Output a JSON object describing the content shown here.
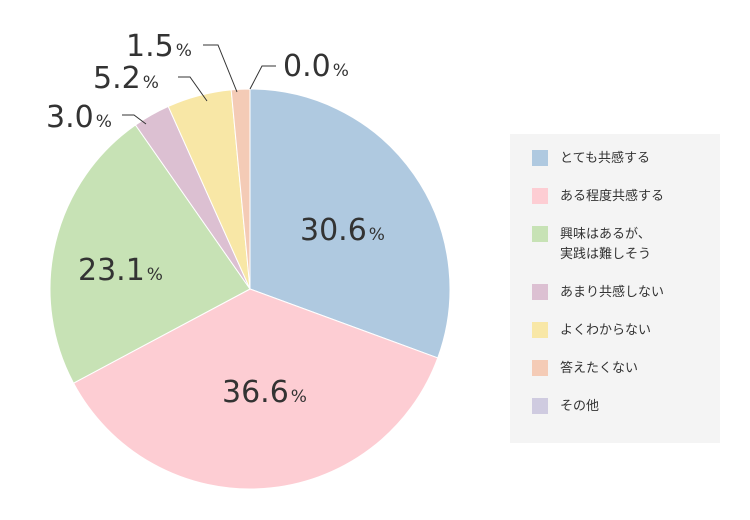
{
  "chart_data": {
    "type": "pie",
    "series": [
      {
        "label": "とても共感する",
        "value": 30.6,
        "display": "30.6",
        "color": "#afc9e0"
      },
      {
        "label": "ある程度共感する",
        "value": 36.6,
        "display": "36.6",
        "color": "#fdcdd3"
      },
      {
        "label": "興味はあるが、\n実践は難しそう",
        "value": 23.1,
        "display": "23.1",
        "color": "#c7e2b5"
      },
      {
        "label": "あまり共感しない",
        "value": 3.0,
        "display": "3.0",
        "color": "#dcc0d2"
      },
      {
        "label": "よくわからない",
        "value": 5.2,
        "display": "5.2",
        "color": "#f8e7a6"
      },
      {
        "label": "答えたくない",
        "value": 1.5,
        "display": "1.5",
        "color": "#f4cbb6"
      },
      {
        "label": "その他",
        "value": 0.0,
        "display": "0.0",
        "color": "#cfcbe0"
      }
    ],
    "unit": "%",
    "legend_position": "right"
  }
}
